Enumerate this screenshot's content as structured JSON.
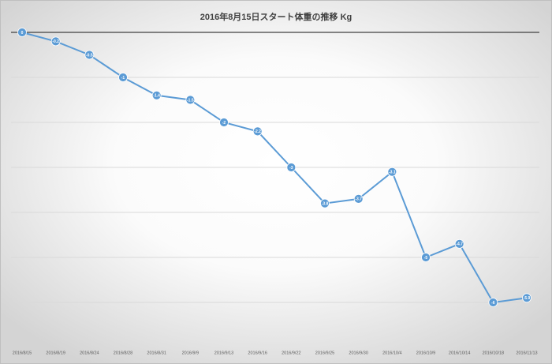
{
  "chart_data": {
    "type": "line",
    "title": "2016年8月15日スタート体重の推移 Kg",
    "categories": [
      "2016/8/15",
      "2016/8/19",
      "2016/8/24",
      "2016/8/28",
      "2016/8/31",
      "2016/9/9",
      "2016/9/13",
      "2016/9/16",
      "2016/9/22",
      "2016/9/25",
      "2016/9/30",
      "2016/10/4",
      "2016/10/9",
      "2016/10/14",
      "2016/10/18",
      "2016/11/13"
    ],
    "series": [
      {
        "color": "#5b9bd5",
        "values": [
          0,
          -0.2,
          -0.5,
          -1,
          -1.4,
          -1.5,
          -2,
          -2.2,
          -3,
          -3.8,
          -3.7,
          -3.1,
          -5,
          -4.7,
          -6,
          -5.9
        ]
      }
    ],
    "ylim": [
      -7,
      0
    ],
    "yticks": [
      -6,
      -5,
      -4,
      -3,
      -2,
      -1,
      0
    ],
    "grid": true
  }
}
